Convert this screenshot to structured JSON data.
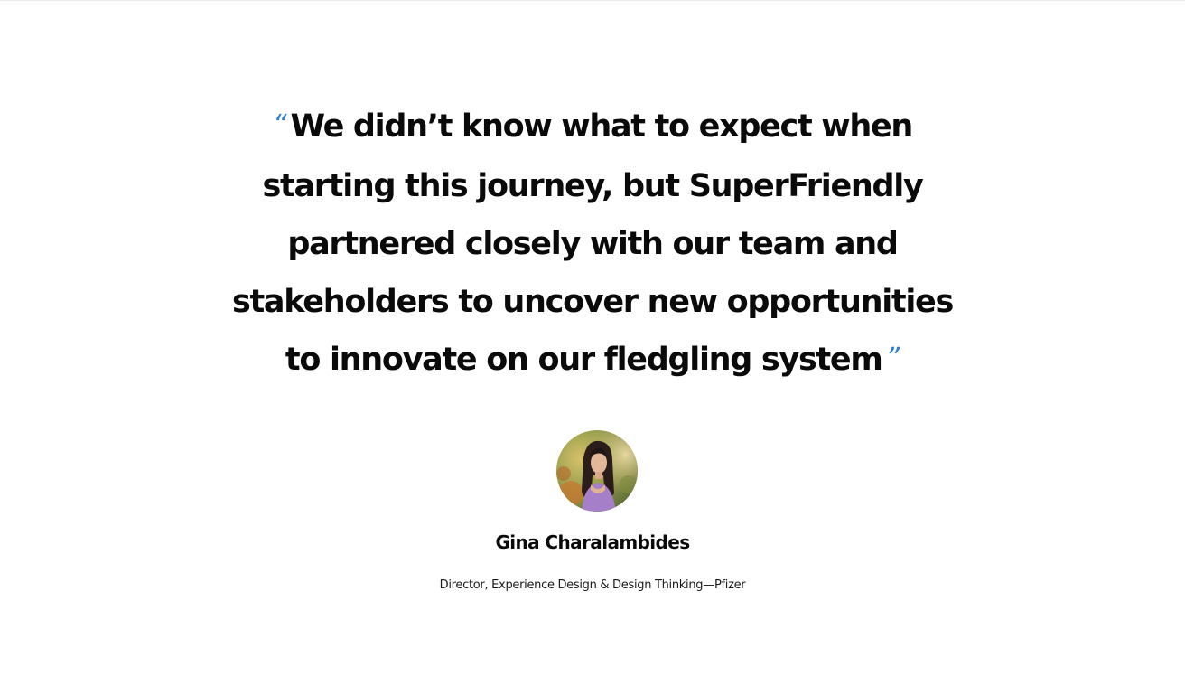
{
  "testimonial": {
    "open_mark": "“",
    "close_mark": "”",
    "quote_lines": [
      "We didn’t know what to expect when",
      "starting this journey, but SuperFriendly",
      "partnered closely with our team and",
      "stakeholders to uncover new opportunities",
      "to innovate on our fledgling system"
    ],
    "author_name": "Gina Charalambides",
    "author_role": "Director, Experience Design & Design Thinking—Pfizer",
    "avatar_icon": "person-photo-avatar"
  },
  "colors": {
    "quote_mark": "#2f7fd6",
    "text": "#0a0a0a",
    "background": "#ffffff"
  }
}
